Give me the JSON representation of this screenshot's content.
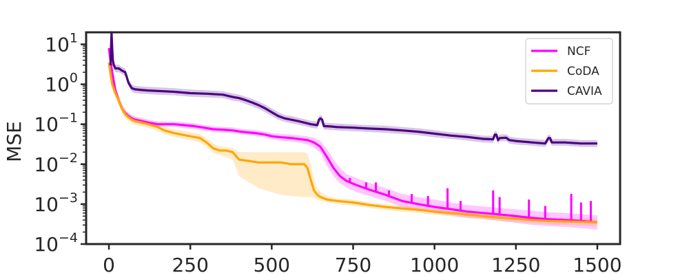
{
  "chart_data": {
    "type": "line",
    "title": "",
    "xlabel": "",
    "ylabel": "MSE",
    "y_scale": "log",
    "xlim": [
      -70,
      1570
    ],
    "ylim": [
      0.0001,
      20
    ],
    "x_ticks": [
      0,
      250,
      500,
      750,
      1000,
      1250,
      1500
    ],
    "x_tick_labels": [
      "0",
      "250",
      "500",
      "750",
      "1000",
      "1250",
      "1500"
    ],
    "y_ticks": [
      0.0001,
      0.001,
      0.01,
      0.1,
      1,
      10
    ],
    "y_tick_labels": [
      {
        "base": "10",
        "exp": "−4"
      },
      {
        "base": "10",
        "exp": "−3"
      },
      {
        "base": "10",
        "exp": "−2"
      },
      {
        "base": "10",
        "exp": "−1"
      },
      {
        "base": "10",
        "exp": "0"
      },
      {
        "base": "10",
        "exp": "1"
      }
    ],
    "grid": false,
    "legend_position": "top-right",
    "series": [
      {
        "name": "NCF",
        "color": "#ff00ff",
        "x": [
          0,
          5,
          10,
          20,
          30,
          40,
          50,
          60,
          70,
          80,
          100,
          120,
          150,
          180,
          200,
          230,
          260,
          280,
          300,
          320,
          350,
          380,
          400,
          420,
          450,
          480,
          500,
          530,
          560,
          590,
          610,
          630,
          650,
          670,
          690,
          710,
          730,
          760,
          800,
          850,
          900,
          950,
          1000,
          1050,
          1100,
          1150,
          1200,
          1250,
          1300,
          1350,
          1400,
          1450,
          1500
        ],
        "y": [
          8,
          4,
          2,
          0.7,
          0.4,
          0.25,
          0.19,
          0.16,
          0.14,
          0.13,
          0.12,
          0.11,
          0.1,
          0.1,
          0.1,
          0.095,
          0.09,
          0.085,
          0.08,
          0.075,
          0.073,
          0.07,
          0.066,
          0.063,
          0.06,
          0.055,
          0.05,
          0.047,
          0.045,
          0.042,
          0.04,
          0.035,
          0.027,
          0.015,
          0.008,
          0.005,
          0.0038,
          0.003,
          0.0023,
          0.0017,
          0.0012,
          0.001,
          0.00085,
          0.00075,
          0.00065,
          0.0006,
          0.00055,
          0.0005,
          0.00045,
          0.00042,
          0.0004,
          0.00038,
          0.00035
        ],
        "band_lower": [
          6,
          3,
          1.5,
          0.55,
          0.32,
          0.2,
          0.16,
          0.14,
          0.12,
          0.11,
          0.1,
          0.095,
          0.088,
          0.087,
          0.086,
          0.08,
          0.076,
          0.072,
          0.068,
          0.064,
          0.062,
          0.06,
          0.057,
          0.054,
          0.051,
          0.047,
          0.042,
          0.039,
          0.037,
          0.034,
          0.031,
          0.026,
          0.019,
          0.009,
          0.005,
          0.0033,
          0.0026,
          0.002,
          0.0016,
          0.0012,
          0.00085,
          0.0007,
          0.0006,
          0.00052,
          0.00045,
          0.00042,
          0.00038,
          0.00034,
          0.0003,
          0.00028,
          0.00027,
          0.00025,
          0.00023
        ],
        "band_upper": [
          10,
          5.5,
          2.7,
          0.9,
          0.5,
          0.31,
          0.23,
          0.19,
          0.17,
          0.155,
          0.145,
          0.13,
          0.118,
          0.116,
          0.115,
          0.112,
          0.106,
          0.1,
          0.094,
          0.088,
          0.086,
          0.083,
          0.078,
          0.074,
          0.071,
          0.065,
          0.06,
          0.057,
          0.055,
          0.052,
          0.05,
          0.046,
          0.038,
          0.024,
          0.013,
          0.008,
          0.0056,
          0.0045,
          0.0034,
          0.0025,
          0.0018,
          0.0015,
          0.0013,
          0.0011,
          0.00095,
          0.00088,
          0.0008,
          0.00074,
          0.00068,
          0.00063,
          0.0006,
          0.00056,
          0.00052
        ],
        "spikes": [
          {
            "x": 700,
            "y": 0.006
          },
          {
            "x": 740,
            "y": 0.0045
          },
          {
            "x": 790,
            "y": 0.0035
          },
          {
            "x": 820,
            "y": 0.0035
          },
          {
            "x": 860,
            "y": 0.0022
          },
          {
            "x": 930,
            "y": 0.0018
          },
          {
            "x": 980,
            "y": 0.0016
          },
          {
            "x": 1040,
            "y": 0.0025
          },
          {
            "x": 1080,
            "y": 0.0012
          },
          {
            "x": 1180,
            "y": 0.0022
          },
          {
            "x": 1200,
            "y": 0.0015
          },
          {
            "x": 1290,
            "y": 0.0013
          },
          {
            "x": 1340,
            "y": 0.0009
          },
          {
            "x": 1420,
            "y": 0.0018
          },
          {
            "x": 1450,
            "y": 0.0011
          },
          {
            "x": 1480,
            "y": 0.0012
          }
        ]
      },
      {
        "name": "CoDA",
        "color": "#ffa500",
        "x": [
          0,
          5,
          10,
          20,
          30,
          40,
          50,
          60,
          70,
          80,
          100,
          120,
          150,
          170,
          200,
          250,
          280,
          300,
          320,
          340,
          360,
          380,
          400,
          430,
          460,
          500,
          530,
          560,
          600,
          610,
          620,
          630,
          640,
          650,
          670,
          700,
          750,
          800,
          850,
          900,
          950,
          1000,
          1050,
          1100,
          1150,
          1200,
          1250,
          1300,
          1350,
          1400,
          1450,
          1500
        ],
        "y": [
          3.5,
          1.8,
          1,
          0.6,
          0.4,
          0.25,
          0.18,
          0.15,
          0.13,
          0.12,
          0.11,
          0.1,
          0.085,
          0.07,
          0.06,
          0.05,
          0.045,
          0.035,
          0.025,
          0.022,
          0.022,
          0.02,
          0.013,
          0.012,
          0.011,
          0.011,
          0.011,
          0.01,
          0.01,
          0.008,
          0.004,
          0.0022,
          0.0017,
          0.0015,
          0.0013,
          0.0012,
          0.0011,
          0.00095,
          0.00085,
          0.00078,
          0.00072,
          0.00065,
          0.0006,
          0.00055,
          0.0005,
          0.00046,
          0.00043,
          0.0004,
          0.00038,
          0.00037,
          0.00036,
          0.00035
        ],
        "band_lower": [
          2.6,
          1.3,
          0.75,
          0.45,
          0.3,
          0.2,
          0.14,
          0.12,
          0.105,
          0.097,
          0.089,
          0.08,
          0.068,
          0.056,
          0.048,
          0.04,
          0.035,
          0.027,
          0.019,
          0.017,
          0.015,
          0.013,
          0.005,
          0.0035,
          0.0025,
          0.002,
          0.0017,
          0.0016,
          0.0015,
          0.0015,
          0.0015,
          0.0014,
          0.0013,
          0.0012,
          0.0011,
          0.001,
          0.00092,
          0.0008,
          0.00071,
          0.00065,
          0.0006,
          0.00054,
          0.0005,
          0.00046,
          0.00042,
          0.00038,
          0.00035,
          0.00033,
          0.00031,
          0.0003,
          0.00029,
          0.00028
        ],
        "band_upper": [
          4.6,
          2.4,
          1.3,
          0.78,
          0.52,
          0.32,
          0.23,
          0.19,
          0.165,
          0.15,
          0.14,
          0.125,
          0.106,
          0.088,
          0.075,
          0.063,
          0.057,
          0.045,
          0.033,
          0.028,
          0.027,
          0.025,
          0.02,
          0.02,
          0.02,
          0.02,
          0.02,
          0.02,
          0.02,
          0.018,
          0.01,
          0.004,
          0.0025,
          0.002,
          0.0016,
          0.0014,
          0.0013,
          0.0011,
          0.001,
          0.00093,
          0.00086,
          0.00078,
          0.00072,
          0.00066,
          0.0006,
          0.00055,
          0.00052,
          0.00048,
          0.00046,
          0.00045,
          0.00044,
          0.00043
        ],
        "spikes": []
      },
      {
        "name": "CAVIA",
        "color": "#4b0082",
        "x": [
          5,
          8,
          10,
          12,
          15,
          20,
          30,
          40,
          50,
          55,
          60,
          70,
          80,
          100,
          120,
          150,
          200,
          250,
          300,
          350,
          380,
          400,
          420,
          440,
          460,
          480,
          500,
          520,
          540,
          560,
          580,
          600,
          620,
          640,
          645,
          650,
          655,
          660,
          680,
          700,
          750,
          800,
          850,
          900,
          950,
          1000,
          1050,
          1100,
          1150,
          1180,
          1185,
          1190,
          1195,
          1200,
          1220,
          1230,
          1250,
          1300,
          1340,
          1350,
          1355,
          1360,
          1400,
          1450,
          1500
        ],
        "y": [
          3,
          20,
          8,
          4,
          3,
          2.5,
          2.5,
          2.2,
          2.0,
          1.5,
          1.1,
          0.8,
          0.75,
          0.72,
          0.7,
          0.68,
          0.65,
          0.6,
          0.58,
          0.55,
          0.48,
          0.45,
          0.4,
          0.35,
          0.3,
          0.25,
          0.2,
          0.16,
          0.14,
          0.13,
          0.12,
          0.11,
          0.1,
          0.095,
          0.13,
          0.14,
          0.13,
          0.09,
          0.088,
          0.085,
          0.082,
          0.078,
          0.075,
          0.07,
          0.065,
          0.058,
          0.052,
          0.048,
          0.043,
          0.042,
          0.055,
          0.055,
          0.04,
          0.045,
          0.046,
          0.04,
          0.038,
          0.035,
          0.033,
          0.045,
          0.045,
          0.035,
          0.035,
          0.033,
          0.033
        ],
        "band_lower": [
          2.5,
          16,
          6.5,
          3.3,
          2.5,
          2.0,
          2.0,
          1.8,
          1.6,
          1.2,
          0.9,
          0.65,
          0.6,
          0.58,
          0.57,
          0.55,
          0.53,
          0.49,
          0.47,
          0.45,
          0.39,
          0.37,
          0.32,
          0.28,
          0.24,
          0.2,
          0.16,
          0.13,
          0.115,
          0.105,
          0.098,
          0.09,
          0.082,
          0.078,
          0.106,
          0.115,
          0.106,
          0.074,
          0.072,
          0.07,
          0.067,
          0.064,
          0.061,
          0.057,
          0.053,
          0.047,
          0.043,
          0.039,
          0.035,
          0.034,
          0.045,
          0.045,
          0.033,
          0.037,
          0.038,
          0.033,
          0.031,
          0.029,
          0.027,
          0.037,
          0.037,
          0.029,
          0.029,
          0.027,
          0.027
        ],
        "band_upper": [
          3.6,
          24,
          9.8,
          4.9,
          3.6,
          3.1,
          3.1,
          2.7,
          2.5,
          1.85,
          1.35,
          0.98,
          0.92,
          0.88,
          0.86,
          0.84,
          0.8,
          0.74,
          0.71,
          0.67,
          0.59,
          0.55,
          0.49,
          0.43,
          0.37,
          0.31,
          0.25,
          0.2,
          0.17,
          0.16,
          0.147,
          0.135,
          0.122,
          0.116,
          0.16,
          0.17,
          0.16,
          0.11,
          0.107,
          0.104,
          0.1,
          0.095,
          0.092,
          0.085,
          0.079,
          0.071,
          0.063,
          0.058,
          0.052,
          0.051,
          0.067,
          0.067,
          0.049,
          0.055,
          0.056,
          0.049,
          0.046,
          0.043,
          0.04,
          0.055,
          0.055,
          0.043,
          0.043,
          0.04,
          0.04
        ],
        "spikes": []
      }
    ]
  }
}
